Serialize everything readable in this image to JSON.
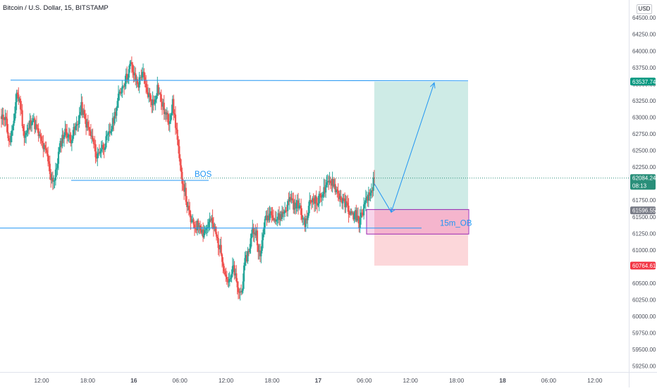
{
  "title": "Bitcoin / U.S. Dollar, 15, BITSTAMP",
  "currency": "USD",
  "colors": {
    "up": "#26a69a",
    "down": "#ef5350",
    "line": "#2196f3",
    "target": "#089981",
    "stop": "#f23645",
    "current": "#2a8f7a",
    "entry": "#787b86"
  },
  "chart_data": {
    "type": "candlestick",
    "title": "Bitcoin / U.S. Dollar, 15, BITSTAMP",
    "exchange": "BITSTAMP",
    "interval": "15",
    "ylim": [
      59100,
      64700
    ],
    "y_ticks": [
      "64500.00",
      "64250.00",
      "64000.00",
      "63750.00",
      "63500.00",
      "63250.00",
      "63000.00",
      "62750.00",
      "62500.00",
      "62250.00",
      "62000.00",
      "61750.00",
      "61500.00",
      "61250.00",
      "61000.00",
      "60750.00",
      "60500.00",
      "60250.00",
      "60000.00",
      "59750.00",
      "59500.00",
      "59250.00"
    ],
    "x_ticks": [
      "12:00",
      "18:00",
      "16",
      "06:00",
      "12:00",
      "18:00",
      "17",
      "06:00",
      "12:00",
      "18:00",
      "18",
      "06:00",
      "12:00"
    ],
    "close_path": [
      62950,
      63050,
      62600,
      62800,
      63380,
      63180,
      62700,
      62800,
      63000,
      62850,
      62700,
      62550,
      62420,
      62100,
      62050,
      62450,
      62700,
      62800,
      62650,
      62780,
      62900,
      63150,
      62950,
      62800,
      62650,
      62400,
      62520,
      62580,
      62700,
      62850,
      63100,
      63350,
      63500,
      63620,
      63800,
      63600,
      63500,
      63700,
      63400,
      63300,
      63200,
      63460,
      63250,
      63050,
      62950,
      63200,
      62800,
      62200,
      61950,
      61600,
      61400,
      61350,
      61400,
      61250,
      61350,
      61450,
      61300,
      61100,
      60900,
      60600,
      60500,
      60750,
      60400,
      60350,
      60800,
      61000,
      61300,
      61250,
      60850,
      61400,
      61500,
      61600,
      61450,
      61500,
      61550,
      61650,
      61800,
      61650,
      61700,
      61500,
      61400,
      61700,
      61800,
      61700,
      61850,
      61900,
      62000,
      62050,
      61900,
      61800,
      61700,
      61650,
      61500,
      61550,
      61400,
      61600,
      61750,
      61850,
      62084
    ],
    "levels": {
      "bos": 62050,
      "top_line": 63560,
      "ob_line": 61330,
      "current_price": 62084.24,
      "entry": 61596.55,
      "target": 63537.74,
      "stop": 60764.61
    },
    "labels": {
      "bos": "BOS",
      "ob": "15m_OB"
    },
    "price_badges": [
      {
        "price": "63537.74",
        "kind": "target"
      },
      {
        "price": "62084.24",
        "kind": "current",
        "sub": "08:13"
      },
      {
        "price": "61596.55",
        "kind": "entry"
      },
      {
        "price": "60764.61",
        "kind": "stop"
      }
    ]
  }
}
